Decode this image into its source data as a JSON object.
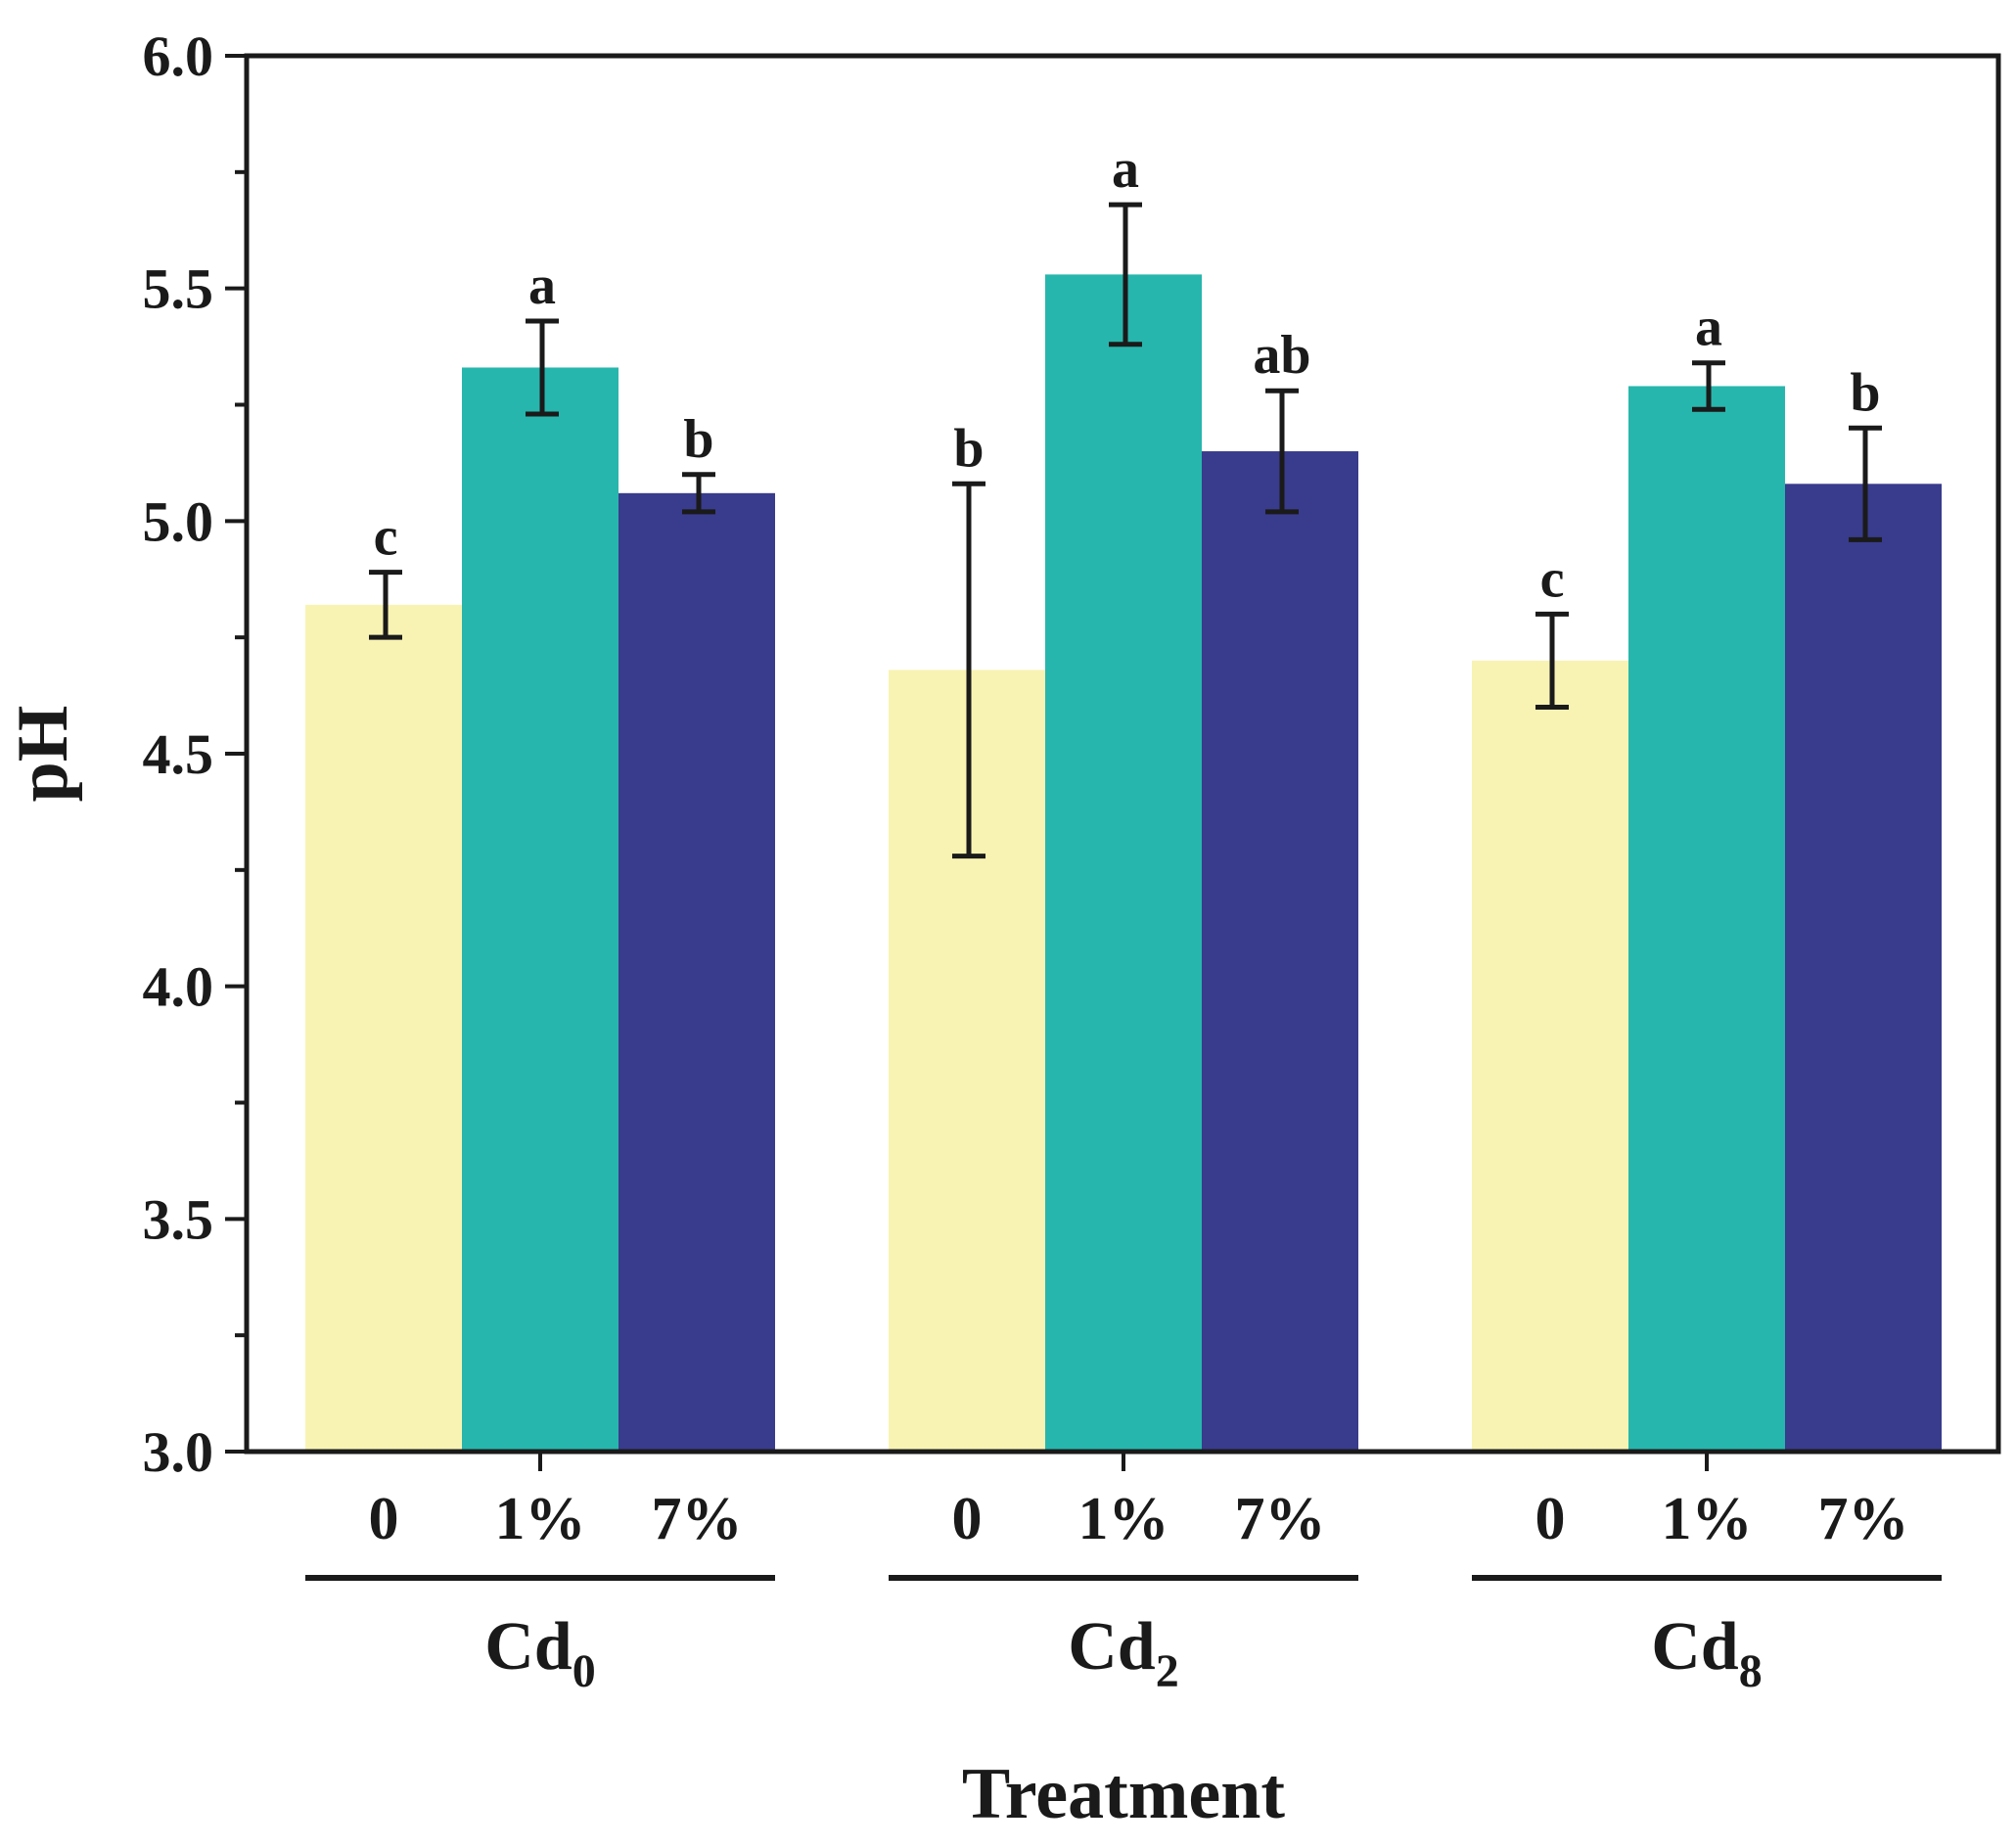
{
  "chart_data": {
    "type": "bar",
    "title": "",
    "xlabel": "Treatment",
    "ylabel": "pH",
    "ylim": [
      3.0,
      6.0
    ],
    "yticks": [
      "3.0",
      "3.5",
      "4.0",
      "4.5",
      "5.0",
      "5.5",
      "6.0"
    ],
    "grid": false,
    "legend": "none",
    "groups": [
      {
        "name": "Cd",
        "subscript": "0"
      },
      {
        "name": "Cd",
        "subscript": "2"
      },
      {
        "name": "Cd",
        "subscript": "8"
      }
    ],
    "series": [
      {
        "name": "0",
        "color": "#f8f3b3",
        "values": [
          4.82,
          4.68,
          4.7
        ],
        "errors": [
          0.07,
          0.4,
          0.1
        ],
        "labels": [
          "c",
          "b",
          "c"
        ]
      },
      {
        "name": "1%",
        "color": "#27b6ad",
        "values": [
          5.33,
          5.53,
          5.29
        ],
        "errors": [
          0.1,
          0.15,
          0.05
        ],
        "labels": [
          "a",
          "a",
          "a"
        ]
      },
      {
        "name": "7%",
        "color": "#393b8c",
        "values": [
          5.06,
          5.15,
          5.08
        ],
        "errors": [
          0.04,
          0.13,
          0.12
        ],
        "labels": [
          "b",
          "ab",
          "b"
        ]
      }
    ]
  }
}
